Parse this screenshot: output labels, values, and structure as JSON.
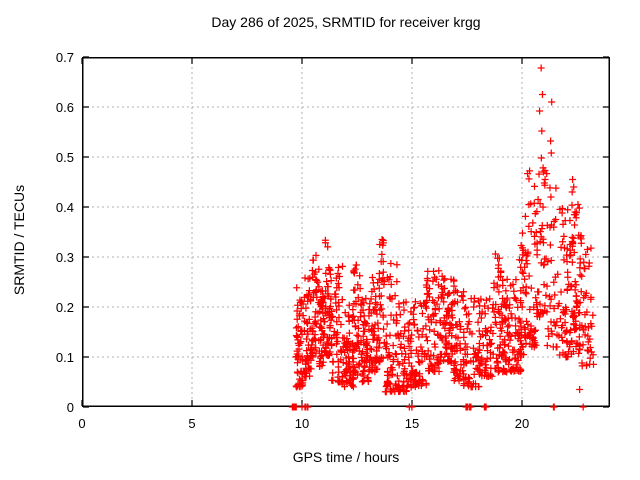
{
  "chart_data": {
    "type": "scatter",
    "title": "Day 286 of 2025, SRMTID for receiver krgg",
    "xlabel": "GPS time / hours",
    "ylabel": "SRMTID / TECUs",
    "xlim": [
      0,
      24
    ],
    "ylim": [
      0,
      0.7
    ],
    "xticks": [
      {
        "value": 0,
        "label": "0"
      },
      {
        "value": 5,
        "label": "5"
      },
      {
        "value": 10,
        "label": "10"
      },
      {
        "value": 15,
        "label": "15"
      },
      {
        "value": 20,
        "label": "20"
      }
    ],
    "yticks": [
      {
        "value": 0.0,
        "label": "0"
      },
      {
        "value": 0.1,
        "label": "0.1"
      },
      {
        "value": 0.2,
        "label": "0.2"
      },
      {
        "value": 0.3,
        "label": "0.3"
      },
      {
        "value": 0.4,
        "label": "0.4"
      },
      {
        "value": 0.5,
        "label": "0.5"
      },
      {
        "value": 0.6,
        "label": "0.6"
      },
      {
        "value": 0.7,
        "label": "0.7"
      }
    ],
    "grid": true,
    "legend": "none",
    "marker": {
      "shape": "plus",
      "color": "#ff0000",
      "size": 7
    },
    "colors": {
      "axis": "#000000",
      "grid": "#b0b0b0",
      "background": "#ffffff",
      "text": "#000000"
    },
    "seed": 42,
    "data_span_hours": [
      9.6,
      23.25
    ],
    "point_clusters": [
      {
        "x0": 9.72,
        "x1": 10.05,
        "ymin": 0.04,
        "ymax": 0.24,
        "n": 55,
        "bias": 1.6
      },
      {
        "x0": 10.05,
        "x1": 10.45,
        "ymin": 0.06,
        "ymax": 0.26,
        "n": 50,
        "bias": 1.6
      },
      {
        "x0": 10.45,
        "x1": 10.78,
        "ymin": 0.1,
        "ymax": 0.31,
        "n": 42,
        "bias": 1.4
      },
      {
        "x0": 10.78,
        "x1": 11.05,
        "ymin": 0.08,
        "ymax": 0.24,
        "n": 45,
        "bias": 1.5
      },
      {
        "x0": 11.02,
        "x1": 11.32,
        "ymin": 0.1,
        "ymax": 0.335,
        "n": 45,
        "bias": 1.3
      },
      {
        "x0": 11.32,
        "x1": 11.85,
        "ymin": 0.05,
        "ymax": 0.29,
        "n": 58,
        "bias": 1.8
      },
      {
        "x0": 11.85,
        "x1": 12.35,
        "ymin": 0.04,
        "ymax": 0.21,
        "n": 68,
        "bias": 1.6
      },
      {
        "x0": 12.35,
        "x1": 12.65,
        "ymin": 0.06,
        "ymax": 0.285,
        "n": 40,
        "bias": 1.5
      },
      {
        "x0": 12.65,
        "x1": 13.1,
        "ymin": 0.05,
        "ymax": 0.22,
        "n": 62,
        "bias": 1.6
      },
      {
        "x0": 13.1,
        "x1": 13.45,
        "ymin": 0.07,
        "ymax": 0.26,
        "n": 46,
        "bias": 1.5
      },
      {
        "x0": 13.45,
        "x1": 13.75,
        "ymin": 0.09,
        "ymax": 0.335,
        "n": 36,
        "bias": 1.3
      },
      {
        "x0": 13.75,
        "x1": 14.35,
        "ymin": 0.03,
        "ymax": 0.3,
        "n": 62,
        "bias": 1.9
      },
      {
        "x0": 14.35,
        "x1": 15.0,
        "ymin": 0.03,
        "ymax": 0.21,
        "n": 70,
        "bias": 1.7
      },
      {
        "x0": 15.0,
        "x1": 15.65,
        "ymin": 0.04,
        "ymax": 0.22,
        "n": 62,
        "bias": 1.6
      },
      {
        "x0": 15.65,
        "x1": 16.25,
        "ymin": 0.07,
        "ymax": 0.275,
        "n": 62,
        "bias": 1.5
      },
      {
        "x0": 16.25,
        "x1": 16.85,
        "ymin": 0.09,
        "ymax": 0.27,
        "n": 70,
        "bias": 1.4
      },
      {
        "x0": 16.85,
        "x1": 17.35,
        "ymin": 0.05,
        "ymax": 0.26,
        "n": 52,
        "bias": 1.5
      },
      {
        "x0": 17.35,
        "x1": 18.05,
        "ymin": 0.04,
        "ymax": 0.22,
        "n": 60,
        "bias": 1.7
      },
      {
        "x0": 18.05,
        "x1": 18.65,
        "ymin": 0.06,
        "ymax": 0.22,
        "n": 55,
        "bias": 1.5
      },
      {
        "x0": 18.65,
        "x1": 19.05,
        "ymin": 0.07,
        "ymax": 0.31,
        "n": 42,
        "bias": 1.6
      },
      {
        "x0": 19.05,
        "x1": 19.95,
        "ymin": 0.07,
        "ymax": 0.26,
        "n": 105,
        "bias": 1.7
      },
      {
        "x0": 19.85,
        "x1": 20.15,
        "ymin": 0.1,
        "ymax": 0.35,
        "n": 35,
        "bias": 1.4
      },
      {
        "x0": 20.15,
        "x1": 20.65,
        "ymin": 0.12,
        "ymax": 0.48,
        "n": 52,
        "bias": 1.7
      },
      {
        "x0": 20.65,
        "x1": 21.15,
        "ymin": 0.18,
        "ymax": 0.48,
        "n": 45,
        "bias": 1.6
      },
      {
        "x0": 21.15,
        "x1": 21.65,
        "ymin": 0.12,
        "ymax": 0.45,
        "n": 34,
        "bias": 1.7
      },
      {
        "x0": 21.65,
        "x1": 22.15,
        "ymin": 0.1,
        "ymax": 0.42,
        "n": 46,
        "bias": 1.7
      },
      {
        "x0": 22.15,
        "x1": 22.65,
        "ymin": 0.1,
        "ymax": 0.42,
        "n": 75,
        "bias": 1.5
      },
      {
        "x0": 22.65,
        "x1": 23.25,
        "ymin": 0.08,
        "ymax": 0.38,
        "n": 46,
        "bias": 1.6
      }
    ],
    "zero_groups": [
      {
        "x": 9.6,
        "n": 4,
        "w": 0.04
      },
      {
        "x": 9.72,
        "n": 4,
        "w": 0.04
      },
      {
        "x": 10.0,
        "n": 1,
        "w": 0.0
      },
      {
        "x": 10.14,
        "n": 4,
        "w": 0.04
      },
      {
        "x": 10.28,
        "n": 3,
        "w": 0.03
      },
      {
        "x": 14.88,
        "n": 1,
        "w": 0.0
      },
      {
        "x": 15.0,
        "n": 2,
        "w": 0.01
      },
      {
        "x": 17.5,
        "n": 5,
        "w": 0.05
      },
      {
        "x": 17.65,
        "n": 3,
        "w": 0.03
      },
      {
        "x": 18.33,
        "n": 4,
        "w": 0.04
      },
      {
        "x": 21.42,
        "n": 5,
        "w": 0.05
      },
      {
        "x": 22.78,
        "n": 1,
        "w": 0.0
      }
    ],
    "extra_points": [
      {
        "x": 20.87,
        "y": 0.678
      },
      {
        "x": 20.93,
        "y": 0.625
      },
      {
        "x": 20.8,
        "y": 0.592
      },
      {
        "x": 21.35,
        "y": 0.61
      },
      {
        "x": 20.9,
        "y": 0.552
      },
      {
        "x": 21.3,
        "y": 0.532
      },
      {
        "x": 21.33,
        "y": 0.508
      },
      {
        "x": 20.88,
        "y": 0.498
      },
      {
        "x": 20.97,
        "y": 0.47
      },
      {
        "x": 21.05,
        "y": 0.455
      },
      {
        "x": 22.3,
        "y": 0.455
      },
      {
        "x": 22.35,
        "y": 0.44
      },
      {
        "x": 22.28,
        "y": 0.43
      },
      {
        "x": 22.62,
        "y": 0.035
      }
    ]
  }
}
